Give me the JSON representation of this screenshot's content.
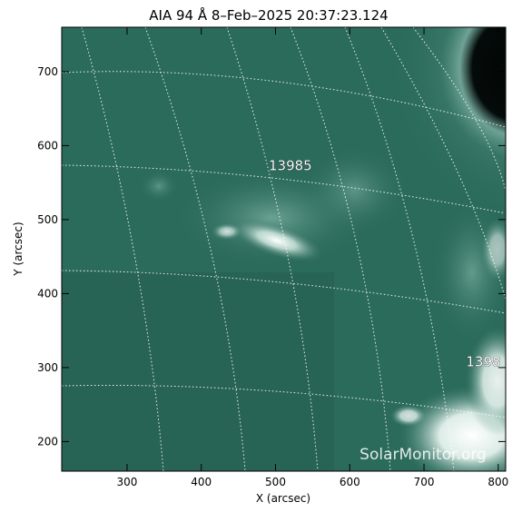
{
  "title": "AIA 94 Å  8–Feb–2025 20:37:23.124",
  "x_axis": {
    "label": "X (arcsec)",
    "range": [
      212,
      810
    ],
    "ticks": [
      300,
      400,
      500,
      600,
      700,
      800
    ],
    "tick_labels": [
      "300",
      "400",
      "500",
      "600",
      "700",
      "800"
    ]
  },
  "y_axis": {
    "label": "Y (arcsec)",
    "range": [
      160,
      760
    ],
    "ticks": [
      200,
      300,
      400,
      500,
      600,
      700
    ],
    "tick_labels": [
      "200",
      "300",
      "400",
      "500",
      "600",
      "700"
    ]
  },
  "regions": [
    {
      "label": "13985",
      "x": 520,
      "y": 567
    },
    {
      "label": "1398",
      "x": 780,
      "y": 302
    }
  ],
  "watermark": "SolarMonitor.org",
  "colors": {
    "background": "#2b6b5c",
    "plot_bg_dark": "#1f5548",
    "bright": "#e8f4ef",
    "grid": "#ffffff"
  }
}
